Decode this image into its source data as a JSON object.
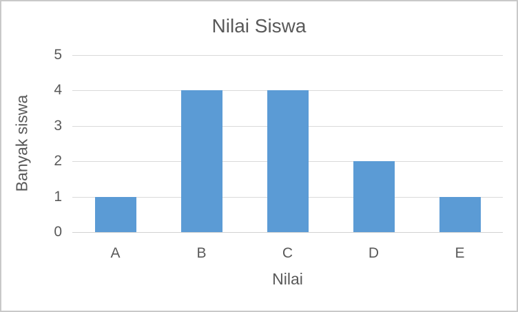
{
  "chart": {
    "title": "Nilai Siswa",
    "x_axis_title": "Nilai",
    "y_axis_title": "Banyak siswa"
  },
  "chart_data": {
    "type": "bar",
    "title": "Nilai Siswa",
    "xlabel": "Nilai",
    "ylabel": "Banyak siswa",
    "categories": [
      "A",
      "B",
      "C",
      "D",
      "E"
    ],
    "values": [
      1,
      4,
      4,
      2,
      1
    ],
    "ylim": [
      0,
      5
    ],
    "yticks": [
      0,
      1,
      2,
      3,
      4,
      5
    ],
    "grid": true,
    "legend": false,
    "bar_color": "#5b9bd5",
    "gridline_color": "#d9d9d9",
    "text_color": "#595959",
    "background_color": "#ffffff",
    "border_color": "#c9c9c9"
  }
}
